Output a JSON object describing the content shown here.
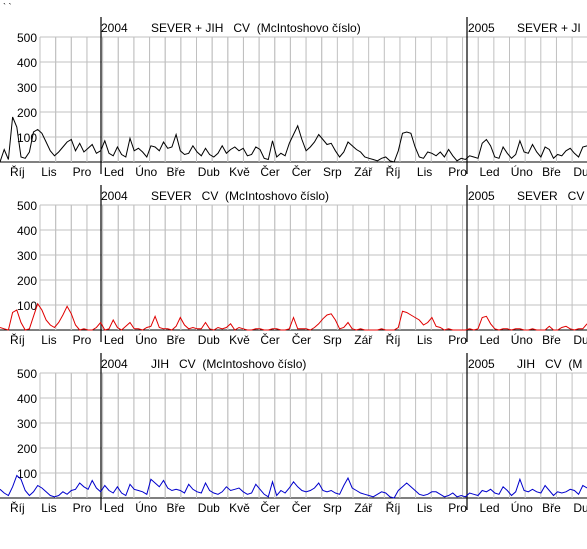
{
  "corner_mark": "` `",
  "colors": {
    "background": "#ffffff",
    "grid": "#c0c0c0",
    "axis": "#000000",
    "text": "#000000",
    "series": [
      "#000000",
      "#e00000",
      "#0000cc"
    ]
  },
  "chart_data": [
    {
      "type": "line",
      "title_left": "2004",
      "title_text": "SEVER + JIH   CV  (McIntoshovo číslo)",
      "title_right_year": "2005",
      "title_right_text": "SEVER + JI",
      "ylim": [
        0,
        500
      ],
      "yticks": [
        "500",
        "400",
        "300",
        "200",
        "100"
      ],
      "months": [
        "Říj",
        "Lis",
        "Pro",
        "Led",
        "Úno",
        "Bře",
        "Dub",
        "Kvě",
        "Čer",
        "Čer",
        "Srp",
        "Zář",
        "Říj",
        "Lis",
        "Pro",
        "Led",
        "Úno",
        "Bře",
        "Dub"
      ],
      "grid": true,
      "series": [
        {
          "color": "#000000",
          "values": [
            0,
            50,
            10,
            180,
            140,
            20,
            15,
            40,
            120,
            130,
            115,
            80,
            45,
            25,
            40,
            60,
            80,
            90,
            45,
            75,
            40,
            55,
            70,
            35,
            45,
            85,
            35,
            25,
            60,
            30,
            20,
            95,
            45,
            55,
            40,
            20,
            65,
            60,
            45,
            80,
            55,
            60,
            110,
            45,
            30,
            35,
            65,
            40,
            25,
            55,
            30,
            20,
            35,
            65,
            35,
            50,
            60,
            45,
            55,
            25,
            30,
            60,
            50,
            15,
            10,
            85,
            20,
            35,
            25,
            75,
            110,
            145,
            90,
            45,
            60,
            80,
            110,
            90,
            70,
            75,
            45,
            20,
            40,
            80,
            65,
            50,
            40,
            20,
            15,
            10,
            5,
            15,
            20,
            5,
            0,
            45,
            115,
            120,
            115,
            60,
            20,
            15,
            40,
            35,
            25,
            40,
            20,
            50,
            25,
            5,
            15,
            10,
            25,
            20,
            15,
            75,
            90,
            65,
            20,
            15,
            60,
            35,
            15,
            30,
            85,
            40,
            35,
            70,
            40,
            20,
            60,
            50,
            15,
            30,
            25,
            45,
            55,
            35,
            20,
            60,
            65
          ]
        }
      ]
    },
    {
      "type": "line",
      "title_left": "2004",
      "title_text": "SEVER   CV  (McIntoshovo číslo)",
      "title_right_year": "2005",
      "title_right_text": "SEVER   CV",
      "ylim": [
        0,
        500
      ],
      "yticks": [
        "500",
        "400",
        "300",
        "200",
        "100"
      ],
      "months": [
        "Říj",
        "Lis",
        "Pro",
        "Led",
        "Úno",
        "Bře",
        "Dub",
        "Kvě",
        "Čer",
        "Čer",
        "Srp",
        "Zář",
        "Říj",
        "Lis",
        "Pro",
        "Led",
        "Úno",
        "Bře",
        "Dub"
      ],
      "grid": true,
      "series": [
        {
          "color": "#e00000",
          "values": [
            10,
            5,
            0,
            70,
            80,
            30,
            0,
            5,
            55,
            105,
            80,
            40,
            20,
            10,
            30,
            60,
            95,
            65,
            20,
            0,
            5,
            0,
            0,
            10,
            30,
            0,
            5,
            40,
            10,
            0,
            15,
            30,
            5,
            5,
            0,
            10,
            15,
            55,
            10,
            5,
            5,
            0,
            15,
            50,
            20,
            5,
            10,
            5,
            5,
            30,
            5,
            0,
            10,
            5,
            10,
            25,
            0,
            10,
            5,
            0,
            0,
            5,
            5,
            0,
            0,
            5,
            5,
            0,
            0,
            5,
            50,
            5,
            5,
            5,
            0,
            10,
            25,
            45,
            60,
            65,
            40,
            5,
            10,
            30,
            5,
            0,
            5,
            0,
            0,
            0,
            0,
            5,
            0,
            0,
            0,
            10,
            75,
            70,
            60,
            50,
            40,
            20,
            30,
            50,
            15,
            10,
            0,
            5,
            0,
            0,
            0,
            0,
            5,
            0,
            5,
            50,
            55,
            25,
            5,
            0,
            5,
            5,
            0,
            5,
            5,
            0,
            0,
            5,
            0,
            0,
            0,
            15,
            0,
            0,
            10,
            15,
            5,
            0,
            5,
            5,
            25
          ]
        }
      ]
    },
    {
      "type": "line",
      "title_left": "2004",
      "title_text": "JIH   CV  (McIntoshovo číslo)",
      "title_right_year": "2005",
      "title_right_text": "JIH   CV  (M",
      "ylim": [
        0,
        500
      ],
      "yticks": [
        "500",
        "400",
        "300",
        "200",
        "100"
      ],
      "months": [
        "Říj",
        "Lis",
        "Pro",
        "Led",
        "Úno",
        "Bře",
        "Dub",
        "Kvě",
        "Čer",
        "Čer",
        "Srp",
        "Zář",
        "Říj",
        "Lis",
        "Pro",
        "Led",
        "Úno",
        "Bře",
        "Dub"
      ],
      "grid": true,
      "series": [
        {
          "color": "#0000cc",
          "values": [
            35,
            20,
            10,
            45,
            90,
            75,
            30,
            10,
            25,
            50,
            40,
            25,
            10,
            5,
            10,
            25,
            15,
            30,
            35,
            60,
            45,
            35,
            70,
            40,
            25,
            50,
            30,
            20,
            45,
            20,
            10,
            55,
            35,
            30,
            25,
            15,
            75,
            60,
            45,
            70,
            40,
            30,
            35,
            30,
            20,
            55,
            35,
            25,
            20,
            60,
            30,
            20,
            15,
            25,
            45,
            30,
            35,
            40,
            25,
            15,
            20,
            55,
            35,
            15,
            5,
            65,
            10,
            30,
            20,
            40,
            65,
            45,
            30,
            25,
            30,
            40,
            60,
            30,
            25,
            30,
            20,
            15,
            50,
            80,
            40,
            30,
            20,
            15,
            10,
            5,
            15,
            25,
            20,
            5,
            0,
            30,
            45,
            60,
            45,
            30,
            15,
            10,
            15,
            25,
            25,
            15,
            5,
            10,
            20,
            5,
            10,
            5,
            20,
            15,
            10,
            30,
            25,
            35,
            20,
            15,
            45,
            30,
            10,
            25,
            75,
            30,
            25,
            35,
            25,
            20,
            50,
            30,
            10,
            25,
            20,
            25,
            35,
            30,
            15,
            50,
            40
          ]
        }
      ]
    }
  ]
}
